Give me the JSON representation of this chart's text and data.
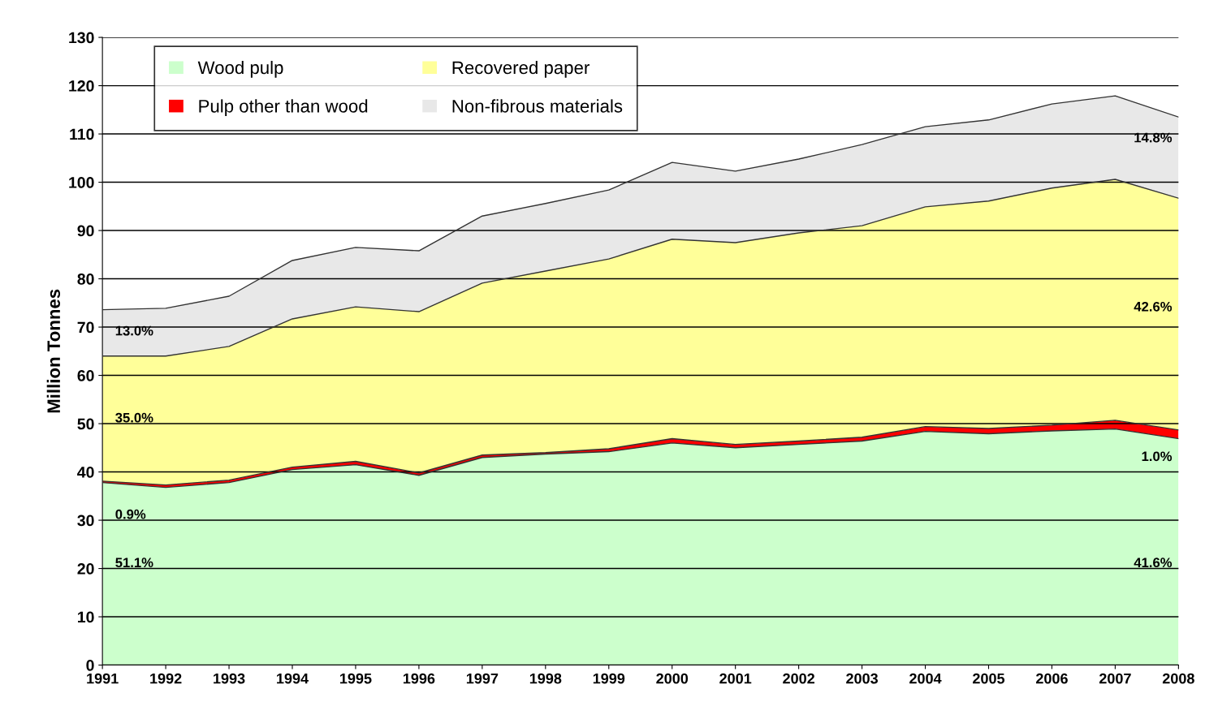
{
  "chart_data": {
    "type": "area",
    "stacked": true,
    "ylabel": "Million Tonnes",
    "categories": [
      "1991",
      "1992",
      "1993",
      "1994",
      "1995",
      "1996",
      "1997",
      "1998",
      "1999",
      "2000",
      "2001",
      "2002",
      "2003",
      "2004",
      "2005",
      "2006",
      "2007",
      "2008"
    ],
    "series": [
      {
        "name": "Wood pulp",
        "color": "#ccffcc",
        "values": [
          37.8,
          36.8,
          37.8,
          40.5,
          41.5,
          39.3,
          43.0,
          43.7,
          44.2,
          46.0,
          45.0,
          45.7,
          46.4,
          48.4,
          47.9,
          48.5,
          48.9,
          46.9
        ]
      },
      {
        "name": "Pulp other than wood",
        "color": "#ff0000",
        "values": [
          0.3,
          0.5,
          0.5,
          0.5,
          0.7,
          0.5,
          0.5,
          0.3,
          0.6,
          0.9,
          0.7,
          0.7,
          0.8,
          1.0,
          1.1,
          1.2,
          1.8,
          1.8
        ]
      },
      {
        "name": "Recovered paper",
        "color": "#ffff99",
        "values": [
          25.9,
          26.7,
          27.7,
          30.7,
          32.0,
          33.4,
          35.6,
          37.6,
          39.3,
          41.3,
          41.8,
          43.1,
          43.8,
          45.5,
          47.1,
          49.1,
          49.9,
          48.0
        ]
      },
      {
        "name": "Non-fibrous materials",
        "color": "#e8e8e8",
        "values": [
          9.6,
          9.9,
          10.4,
          12.1,
          12.3,
          12.6,
          13.9,
          14.0,
          14.3,
          15.9,
          14.8,
          15.3,
          16.8,
          16.6,
          16.8,
          17.4,
          17.3,
          16.8
        ]
      }
    ],
    "ylim": [
      0,
      130
    ],
    "yticks": [
      0,
      10,
      20,
      30,
      40,
      50,
      60,
      70,
      80,
      90,
      100,
      110,
      120,
      130
    ],
    "grid": "y",
    "legend": "top left",
    "annotations": [
      {
        "text": "13.0%",
        "x": "1991",
        "y": 69
      },
      {
        "text": "35.0%",
        "x": "1991",
        "y": 51
      },
      {
        "text": "0.9%",
        "x": "1991",
        "y": 31
      },
      {
        "text": "51.1%",
        "x": "1991",
        "y": 21
      },
      {
        "text": "14.8%",
        "x": "2008",
        "y": 109
      },
      {
        "text": "42.6%",
        "x": "2008",
        "y": 74
      },
      {
        "text": "1.0%",
        "x": "2008",
        "y": 43
      },
      {
        "text": "41.6%",
        "x": "2008",
        "y": 21
      }
    ]
  }
}
